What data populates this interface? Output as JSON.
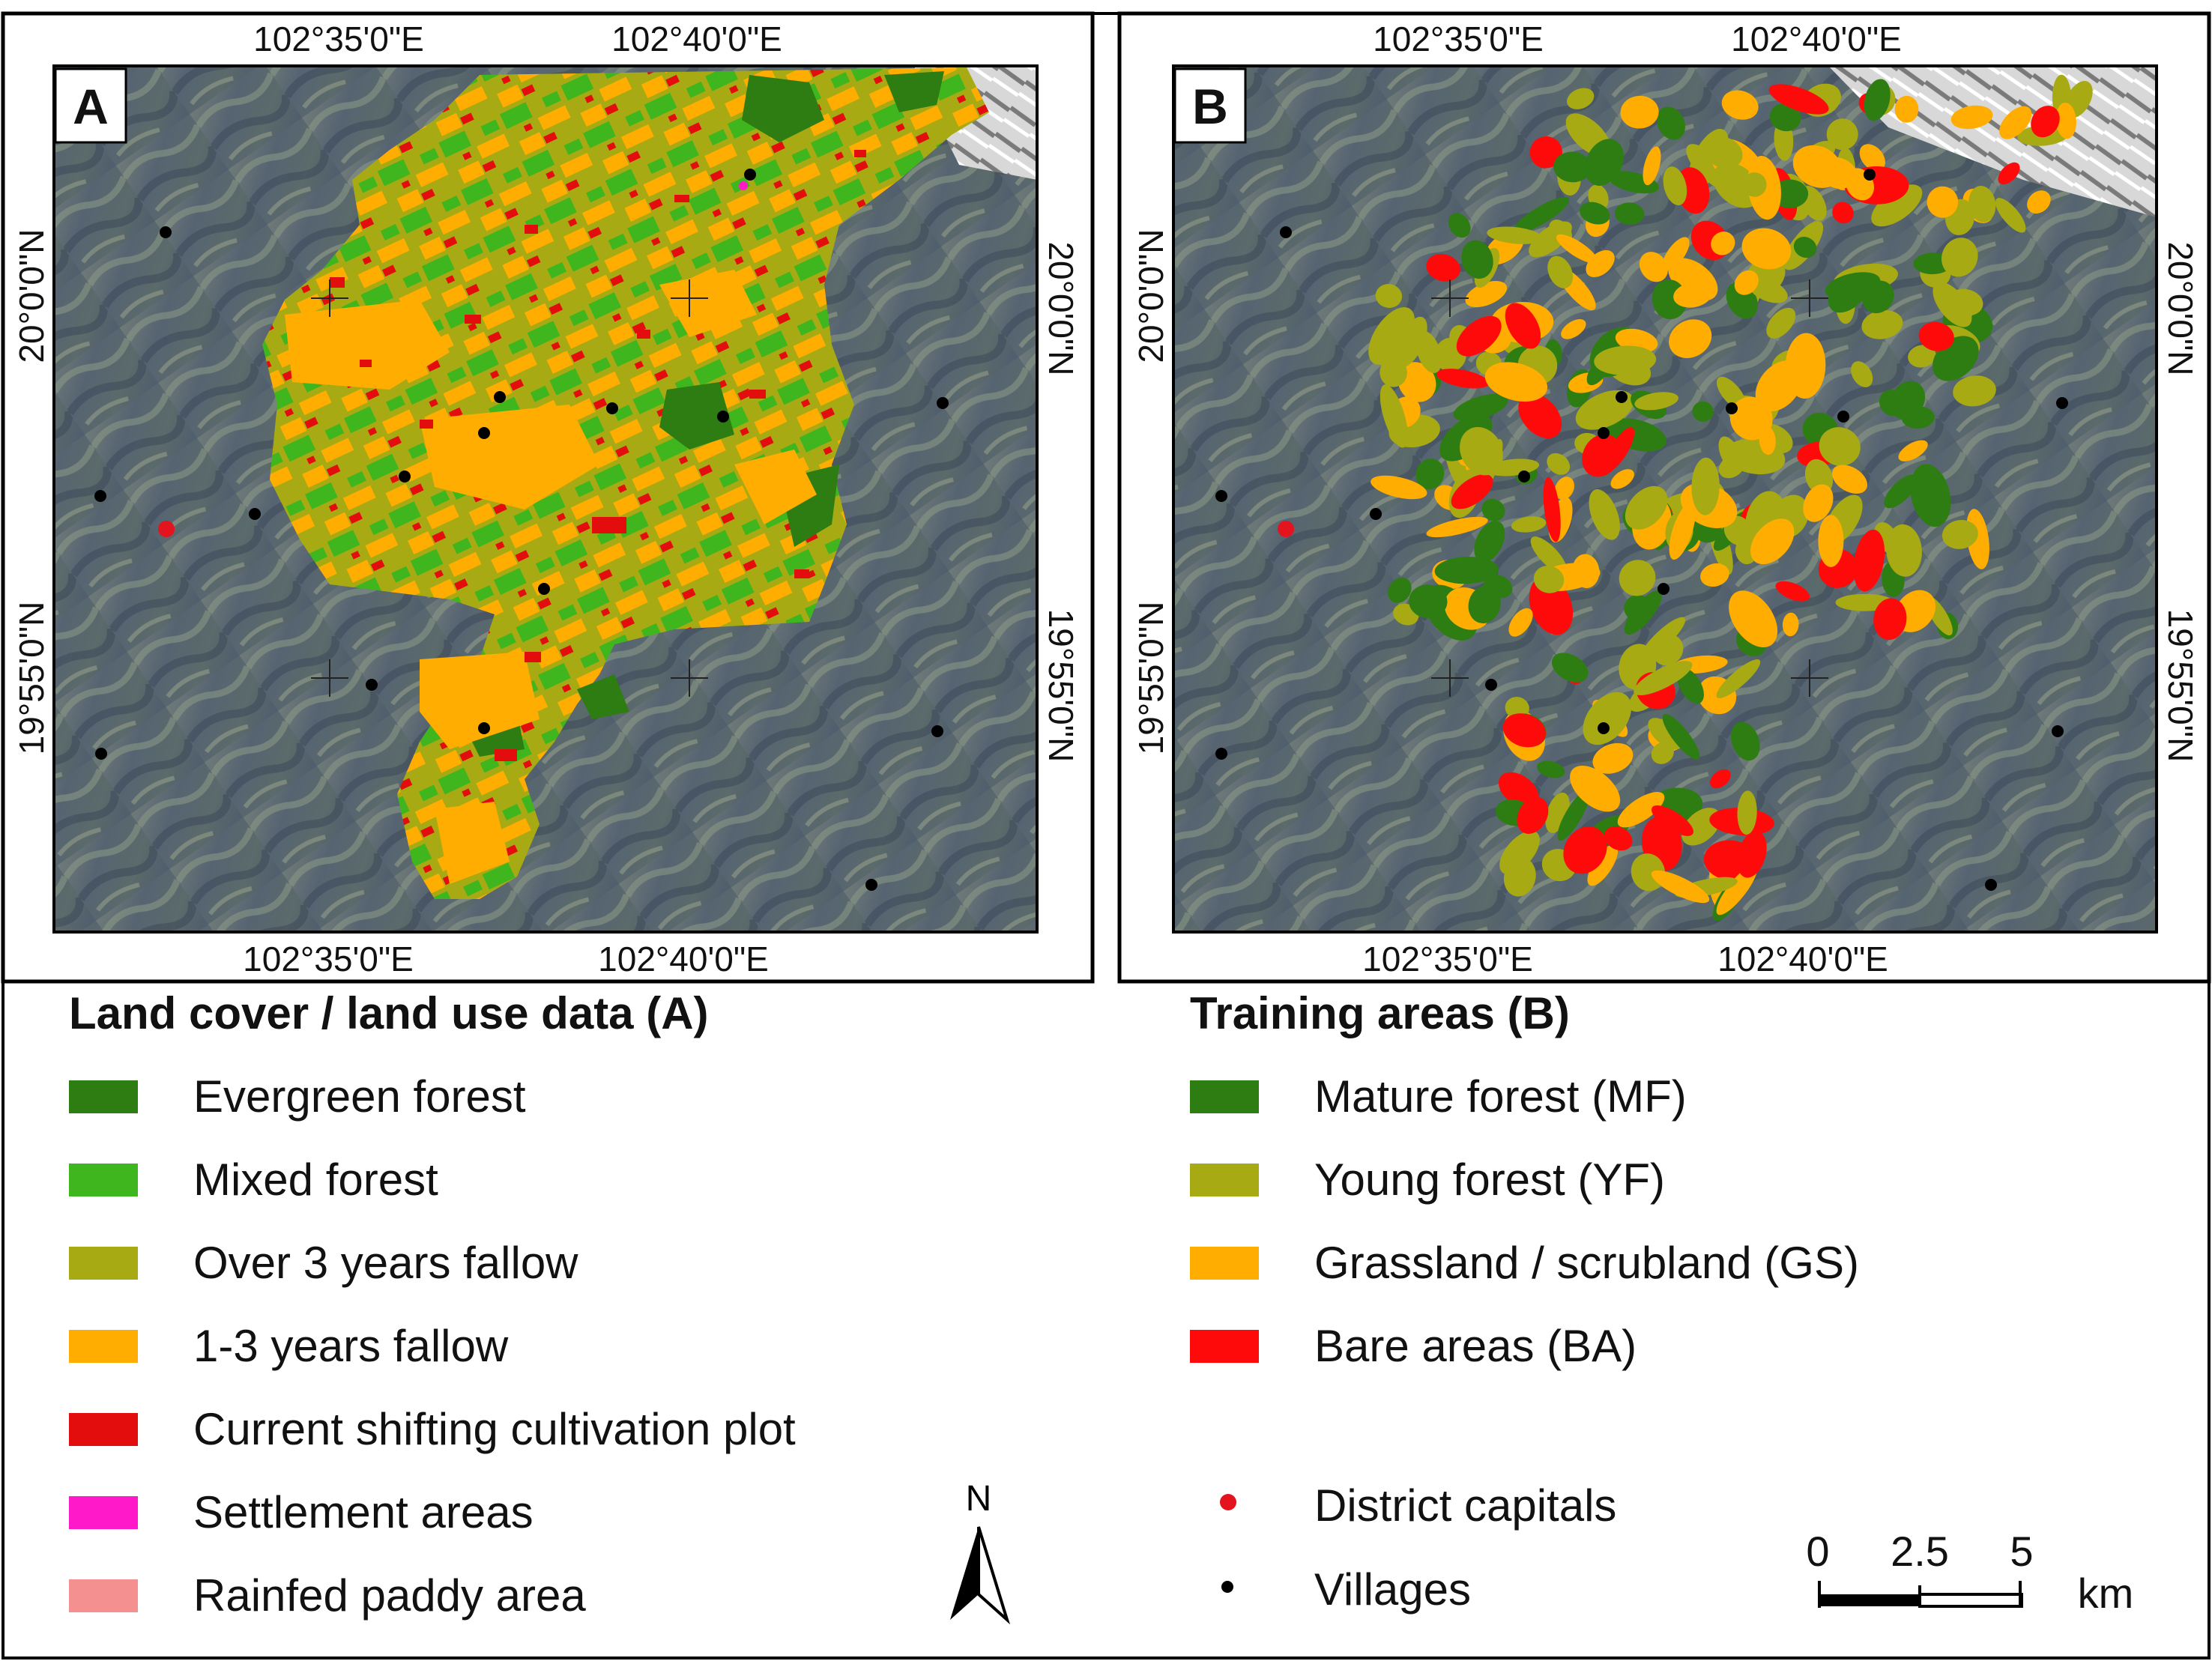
{
  "panels": [
    {
      "letter": "A",
      "top_lon": [
        "102°35'0\"E",
        "102°40'0\"E"
      ],
      "bottom_lon": [
        "102°35'0\"E",
        "102°40'0\"E"
      ],
      "left_lat": [
        "20°0'0\"N",
        "19°55'0\"N"
      ],
      "right_lat": [
        "20°0'0\"N",
        "19°55'0\"N"
      ]
    },
    {
      "letter": "B",
      "top_lon": [
        "102°35'0\"E",
        "102°40'0\"E"
      ],
      "bottom_lon": [
        "102°35'0\"E",
        "102°40'0\"E"
      ],
      "left_lat": [
        "20°0'0\"N",
        "19°55'0\"N"
      ],
      "right_lat": [
        "20°0'0\"N",
        "19°55'0\"N"
      ]
    }
  ],
  "legend_a": {
    "title": "Land cover / land use data (A)",
    "items": [
      {
        "label": "Evergreen forest",
        "color": "#2e7d12"
      },
      {
        "label": "Mixed forest",
        "color": "#3fb51e"
      },
      {
        "label": "Over 3 years fallow",
        "color": "#a8aa14"
      },
      {
        "label": "1-3 years fallow",
        "color": "#ffad00"
      },
      {
        "label": "Current shifting cultivation plot",
        "color": "#e30d0d"
      },
      {
        "label": "Settlement areas",
        "color": "#ff19c8"
      },
      {
        "label": "Rainfed paddy area",
        "color": "#f49090"
      }
    ]
  },
  "legend_b": {
    "title": "Training areas (B)",
    "items": [
      {
        "label": "Mature forest (MF)",
        "color": "#2e7d12"
      },
      {
        "label": "Young forest (YF)",
        "color": "#a8aa14"
      },
      {
        "label": "Grassland / scrubland (GS)",
        "color": "#ffad00"
      },
      {
        "label": "Bare areas (BA)",
        "color": "#ff0a0a"
      }
    ]
  },
  "points_legend": [
    {
      "label": "District capitals",
      "color": "#e3141e"
    },
    {
      "label": "Villages",
      "color": "#000000"
    }
  ],
  "north_arrow": {
    "label": "N"
  },
  "scale_bar": {
    "ticks": [
      "0",
      "2.5",
      "5"
    ],
    "unit": "km"
  }
}
